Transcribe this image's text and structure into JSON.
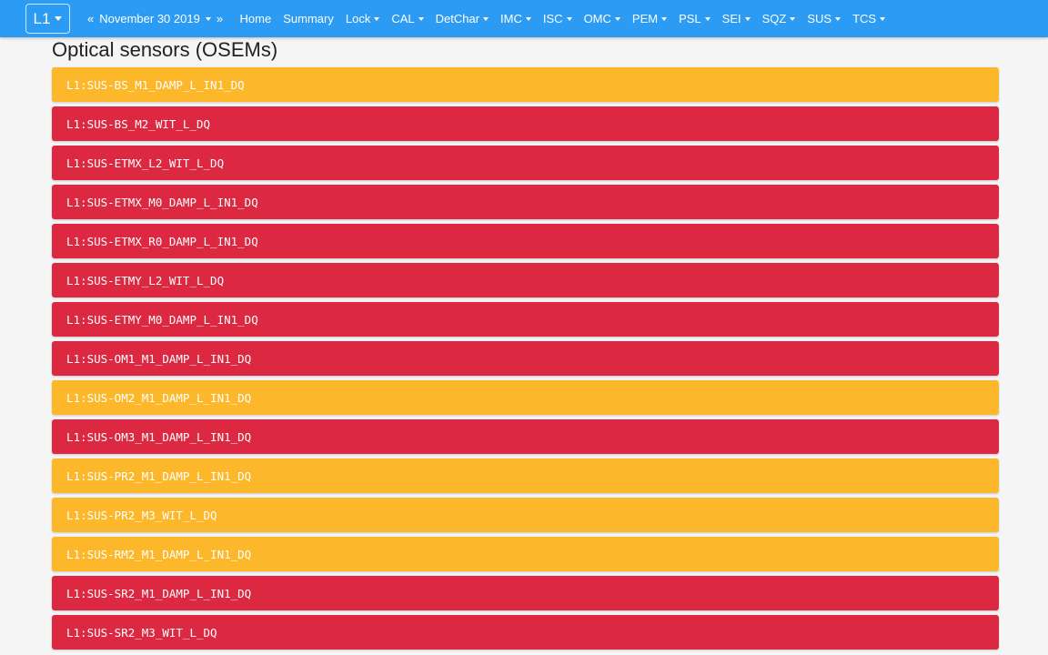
{
  "navbar": {
    "ifo_label": "L1",
    "prev_arrow": "«",
    "date_label": "November 30 2019",
    "next_arrow": "»",
    "items": [
      {
        "label": "Home",
        "dropdown": false
      },
      {
        "label": "Summary",
        "dropdown": false
      },
      {
        "label": "Lock",
        "dropdown": true
      },
      {
        "label": "CAL",
        "dropdown": true
      },
      {
        "label": "DetChar",
        "dropdown": true
      },
      {
        "label": "IMC",
        "dropdown": true
      },
      {
        "label": "ISC",
        "dropdown": true
      },
      {
        "label": "OMC",
        "dropdown": true
      },
      {
        "label": "PEM",
        "dropdown": true
      },
      {
        "label": "PSL",
        "dropdown": true
      },
      {
        "label": "SEI",
        "dropdown": true
      },
      {
        "label": "SQZ",
        "dropdown": true
      },
      {
        "label": "SUS",
        "dropdown": true
      },
      {
        "label": "TCS",
        "dropdown": true
      }
    ]
  },
  "page_title": "Optical sensors (OSEMs)",
  "colors": {
    "navbar": "#2b9bf4",
    "warning": "#fcb72b",
    "danger": "#dc2840"
  },
  "channels": [
    {
      "name": "L1:SUS-BS_M1_DAMP_L_IN1_DQ",
      "status": "warning"
    },
    {
      "name": "L1:SUS-BS_M2_WIT_L_DQ",
      "status": "danger"
    },
    {
      "name": "L1:SUS-ETMX_L2_WIT_L_DQ",
      "status": "danger"
    },
    {
      "name": "L1:SUS-ETMX_M0_DAMP_L_IN1_DQ",
      "status": "danger"
    },
    {
      "name": "L1:SUS-ETMX_R0_DAMP_L_IN1_DQ",
      "status": "danger"
    },
    {
      "name": "L1:SUS-ETMY_L2_WIT_L_DQ",
      "status": "danger"
    },
    {
      "name": "L1:SUS-ETMY_M0_DAMP_L_IN1_DQ",
      "status": "danger"
    },
    {
      "name": "L1:SUS-OM1_M1_DAMP_L_IN1_DQ",
      "status": "danger"
    },
    {
      "name": "L1:SUS-OM2_M1_DAMP_L_IN1_DQ",
      "status": "warning"
    },
    {
      "name": "L1:SUS-OM3_M1_DAMP_L_IN1_DQ",
      "status": "danger"
    },
    {
      "name": "L1:SUS-PR2_M1_DAMP_L_IN1_DQ",
      "status": "warning"
    },
    {
      "name": "L1:SUS-PR2_M3_WIT_L_DQ",
      "status": "warning"
    },
    {
      "name": "L1:SUS-RM2_M1_DAMP_L_IN1_DQ",
      "status": "warning"
    },
    {
      "name": "L1:SUS-SR2_M1_DAMP_L_IN1_DQ",
      "status": "danger"
    },
    {
      "name": "L1:SUS-SR2_M3_WIT_L_DQ",
      "status": "danger"
    }
  ]
}
